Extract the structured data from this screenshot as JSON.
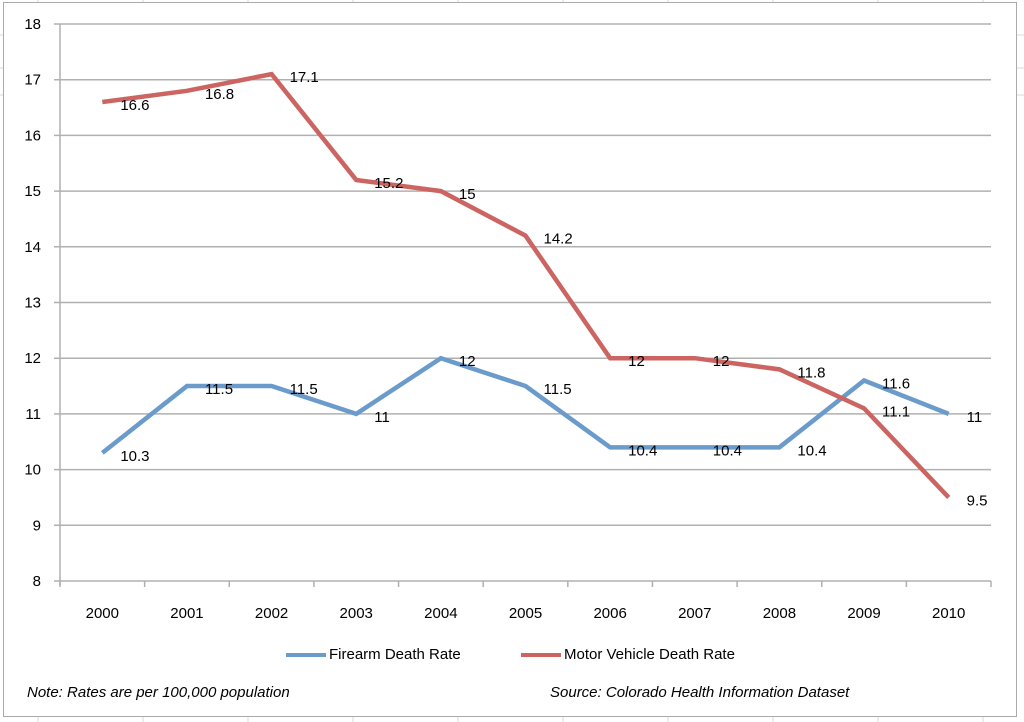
{
  "chart_data": {
    "type": "line",
    "title": "",
    "xlabel": "",
    "ylabel": "",
    "categories": [
      "2000",
      "2001",
      "2002",
      "2003",
      "2004",
      "2005",
      "2006",
      "2007",
      "2008",
      "2009",
      "2010"
    ],
    "ylim": [
      8,
      18
    ],
    "yticks": [
      8,
      9,
      10,
      11,
      12,
      13,
      14,
      15,
      16,
      17,
      18
    ],
    "grid": true,
    "legend_position": "bottom",
    "series": [
      {
        "name": "Firearm Death Rate",
        "color": "#6a9bcb",
        "values": [
          10.3,
          11.5,
          11.5,
          11,
          12,
          11.5,
          10.4,
          10.4,
          10.4,
          11.6,
          11
        ],
        "labels": [
          "10.3",
          "11.5",
          "11.5",
          "11",
          "12",
          "11.5",
          "10.4",
          "10.4",
          "10.4",
          "11.6",
          "11"
        ]
      },
      {
        "name": "Motor Vehicle Death Rate",
        "color": "#cc6461",
        "values": [
          16.6,
          16.8,
          17.1,
          15.2,
          15,
          14.2,
          12,
          12,
          11.8,
          11.1,
          9.5
        ],
        "labels": [
          "16.6",
          "16.8",
          "17.1",
          "15.2",
          "15",
          "14.2",
          "12",
          "12",
          "11.8",
          "11.1",
          "9.5"
        ]
      }
    ],
    "annotations": {
      "note": "Note: Rates are per 100,000 population",
      "source": "Source: Colorado Health Information Dataset"
    }
  }
}
